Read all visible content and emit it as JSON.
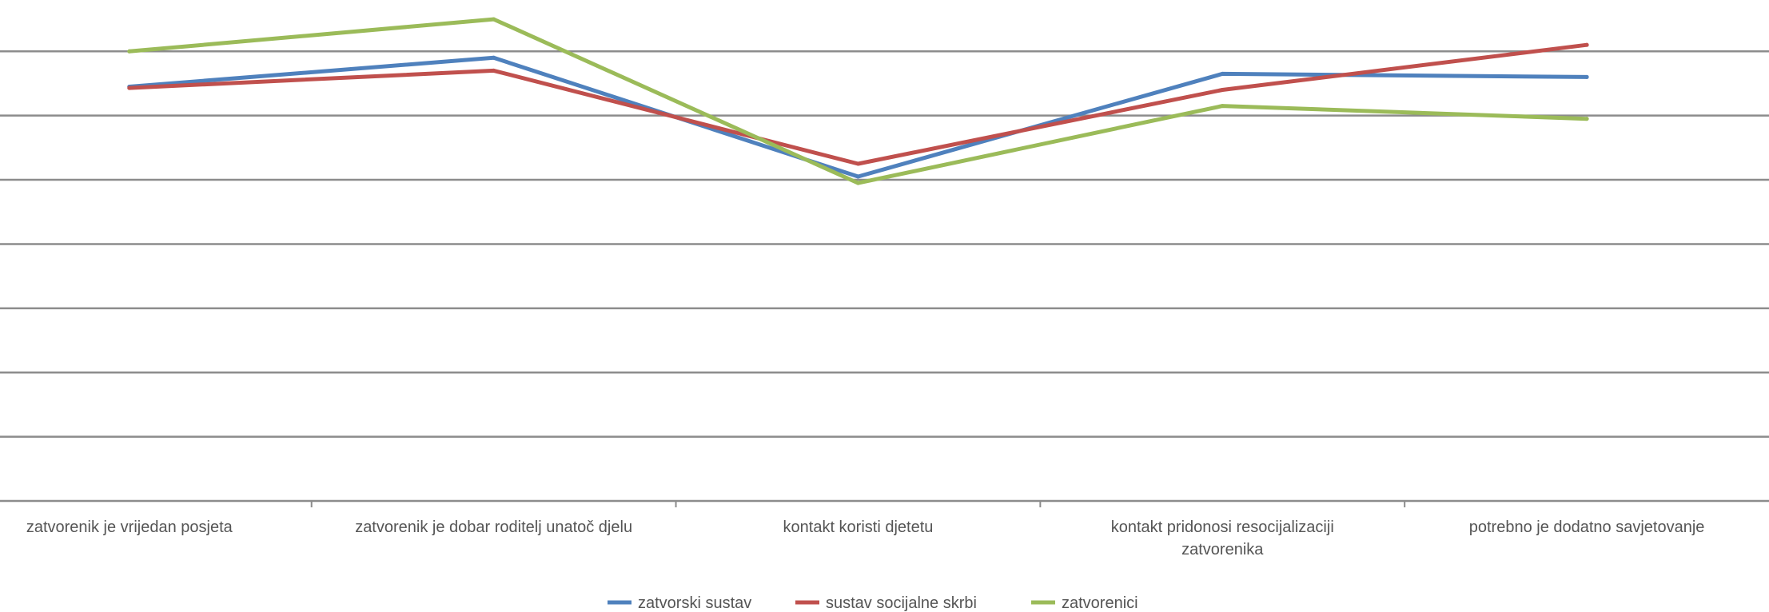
{
  "chart_data": {
    "type": "line",
    "categories": [
      "zatvorenik je vrijedan posjeta",
      "zatvorenik je dobar roditelj unatoč djelu",
      "kontakt koristi djetetu",
      "kontakt pridonosi resocijalizaciji zatvorenika",
      "potrebno je dodatno savjetovanje"
    ],
    "series": [
      {
        "name": "zatvorski sustav",
        "color": "#4f81bd",
        "values": [
          6.45,
          6.9,
          5.05,
          6.65,
          6.6
        ]
      },
      {
        "name": "sustav socijalne skrbi",
        "color": "#c0504d",
        "values": [
          6.43,
          6.7,
          5.25,
          6.4,
          7.1
        ]
      },
      {
        "name": "zatvorenici",
        "color": "#9bbb59",
        "values": [
          7.0,
          7.5,
          4.95,
          6.15,
          5.95
        ]
      }
    ],
    "ylim": [
      0,
      7.7
    ],
    "y_gridlines": [
      0,
      1,
      2,
      3,
      4,
      5,
      6,
      7
    ],
    "grid": true,
    "legend_position": "bottom",
    "xlabel": "",
    "ylabel": ""
  }
}
